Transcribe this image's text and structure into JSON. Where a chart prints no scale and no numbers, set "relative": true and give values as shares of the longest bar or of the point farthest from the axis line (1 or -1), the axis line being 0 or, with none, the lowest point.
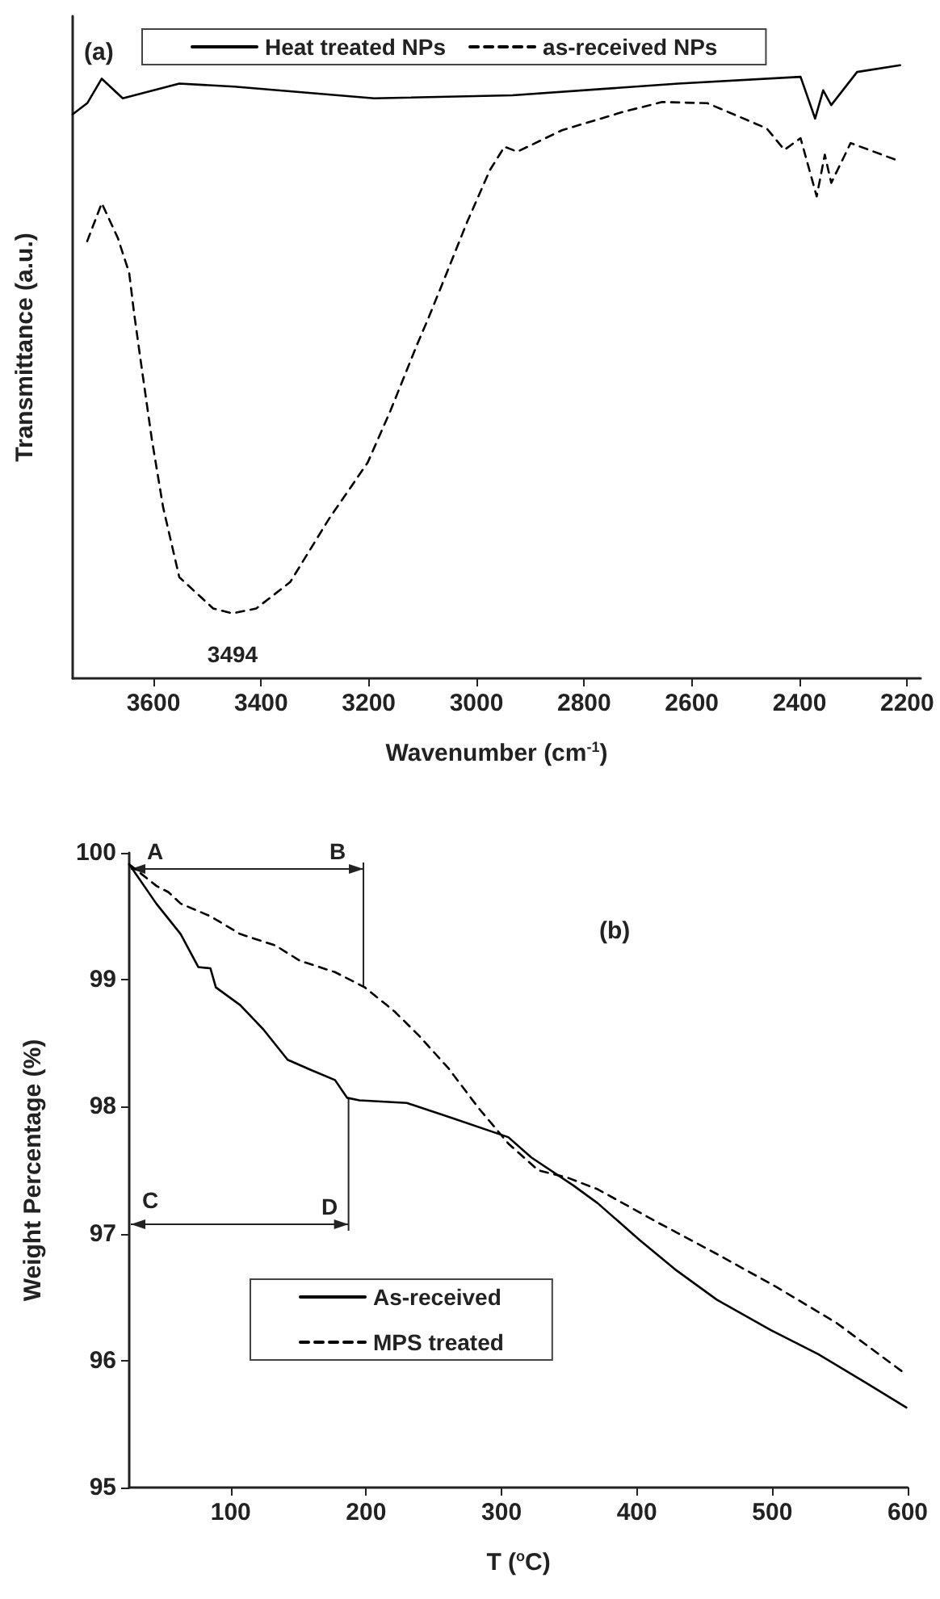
{
  "chart_data": [
    {
      "type": "line",
      "title": "(a)",
      "xlabel": "Wavenumber (cm$^{-1}$)",
      "ylabel": "Transmittance (a.u.)",
      "relative": true,
      "xlim": [
        3750,
        2175
      ],
      "xticks": [
        3600,
        3400,
        3200,
        3000,
        2800,
        2600,
        2400,
        2200
      ],
      "legend": "top",
      "grid": false,
      "marker": "none",
      "annotations": [
        "3494"
      ],
      "series": [
        {
          "name": "Heat treated NPs",
          "color": "#000000",
          "line_style": "solid",
          "x": [
            3750,
            3723,
            3696,
            3657,
            3552,
            3450,
            3190,
            2933,
            2625,
            2398,
            2371,
            2356,
            2341,
            2293,
            2213
          ],
          "values": [
            0.92,
            0.938,
            0.978,
            0.946,
            0.97,
            0.965,
            0.946,
            0.951,
            0.97,
            0.981,
            0.913,
            0.959,
            0.935,
            0.989,
            1
          ]
        },
        {
          "name": "as-received NPs",
          "color": "#000000",
          "line_style": "dashed",
          "x": [
            3723,
            3696,
            3666,
            3645,
            3636,
            3624,
            3603,
            3582,
            3552,
            3489,
            3453,
            3409,
            3346,
            3274,
            3202,
            3160,
            3110,
            3089,
            3059,
            3017,
            2975,
            2948,
            2924,
            2841,
            2727,
            2655,
            2571,
            2461,
            2428,
            2398,
            2368,
            2353,
            2341,
            2305,
            2222
          ],
          "values": [
            0.713,
            0.775,
            0.718,
            0.661,
            0.596,
            0.52,
            0.39,
            0.279,
            0.165,
            0.114,
            0.106,
            0.114,
            0.157,
            0.26,
            0.352,
            0.436,
            0.545,
            0.588,
            0.653,
            0.745,
            0.829,
            0.867,
            0.859,
            0.894,
            0.924,
            0.94,
            0.938,
            0.897,
            0.862,
            0.881,
            0.786,
            0.854,
            0.808,
            0.873,
            0.846
          ]
        }
      ]
    },
    {
      "type": "line",
      "title": "(b)",
      "xlabel": "T ($^{o}$C)",
      "ylabel": "Weight Percentage (%)",
      "xlim": [
        25,
        600
      ],
      "xticks": [
        100,
        200,
        300,
        400,
        500,
        600
      ],
      "ylim": [
        95,
        100
      ],
      "yticks": [
        95,
        96,
        97,
        98,
        99,
        100
      ],
      "legend": "bottom left",
      "grid": false,
      "marker": "none",
      "annotations": [
        "A",
        {
          "text": "B",
          "x": 198,
          "y": 98.94
        },
        "C",
        {
          "text": "D",
          "x": 187,
          "y": 98.07
        }
      ],
      "series": [
        {
          "name": "As-received",
          "color": "#000000",
          "line_style": "solid",
          "x": [
            25,
            45,
            63,
            76,
            85,
            89,
            107,
            124,
            142,
            159,
            177,
            186,
            195,
            230,
            261,
            305,
            322,
            353,
            371,
            402,
            428,
            459,
            499,
            534,
            570,
            599
          ],
          "values": [
            99.91,
            99.6,
            99.36,
            99.1,
            99.09,
            98.94,
            98.8,
            98.61,
            98.37,
            98.29,
            98.21,
            98.07,
            98.05,
            98.03,
            97.92,
            97.76,
            97.6,
            97.38,
            97.24,
            96.95,
            96.72,
            96.48,
            96.24,
            96.05,
            95.82,
            95.63
          ]
        },
        {
          "name": "MPS treated",
          "color": "#000000",
          "line_style": "dashed",
          "x": [
            25,
            45,
            54,
            63,
            85,
            107,
            133,
            151,
            177,
            199,
            221,
            239,
            261,
            283,
            305,
            327,
            349,
            371,
            415,
            459,
            503,
            547,
            599
          ],
          "values": [
            99.91,
            99.74,
            99.69,
            99.6,
            99.5,
            99.36,
            99.27,
            99.15,
            99.06,
            98.94,
            98.75,
            98.56,
            98.3,
            97.99,
            97.71,
            97.5,
            97.44,
            97.35,
            97.09,
            96.84,
            96.58,
            96.3,
            95.89
          ]
        }
      ]
    }
  ]
}
